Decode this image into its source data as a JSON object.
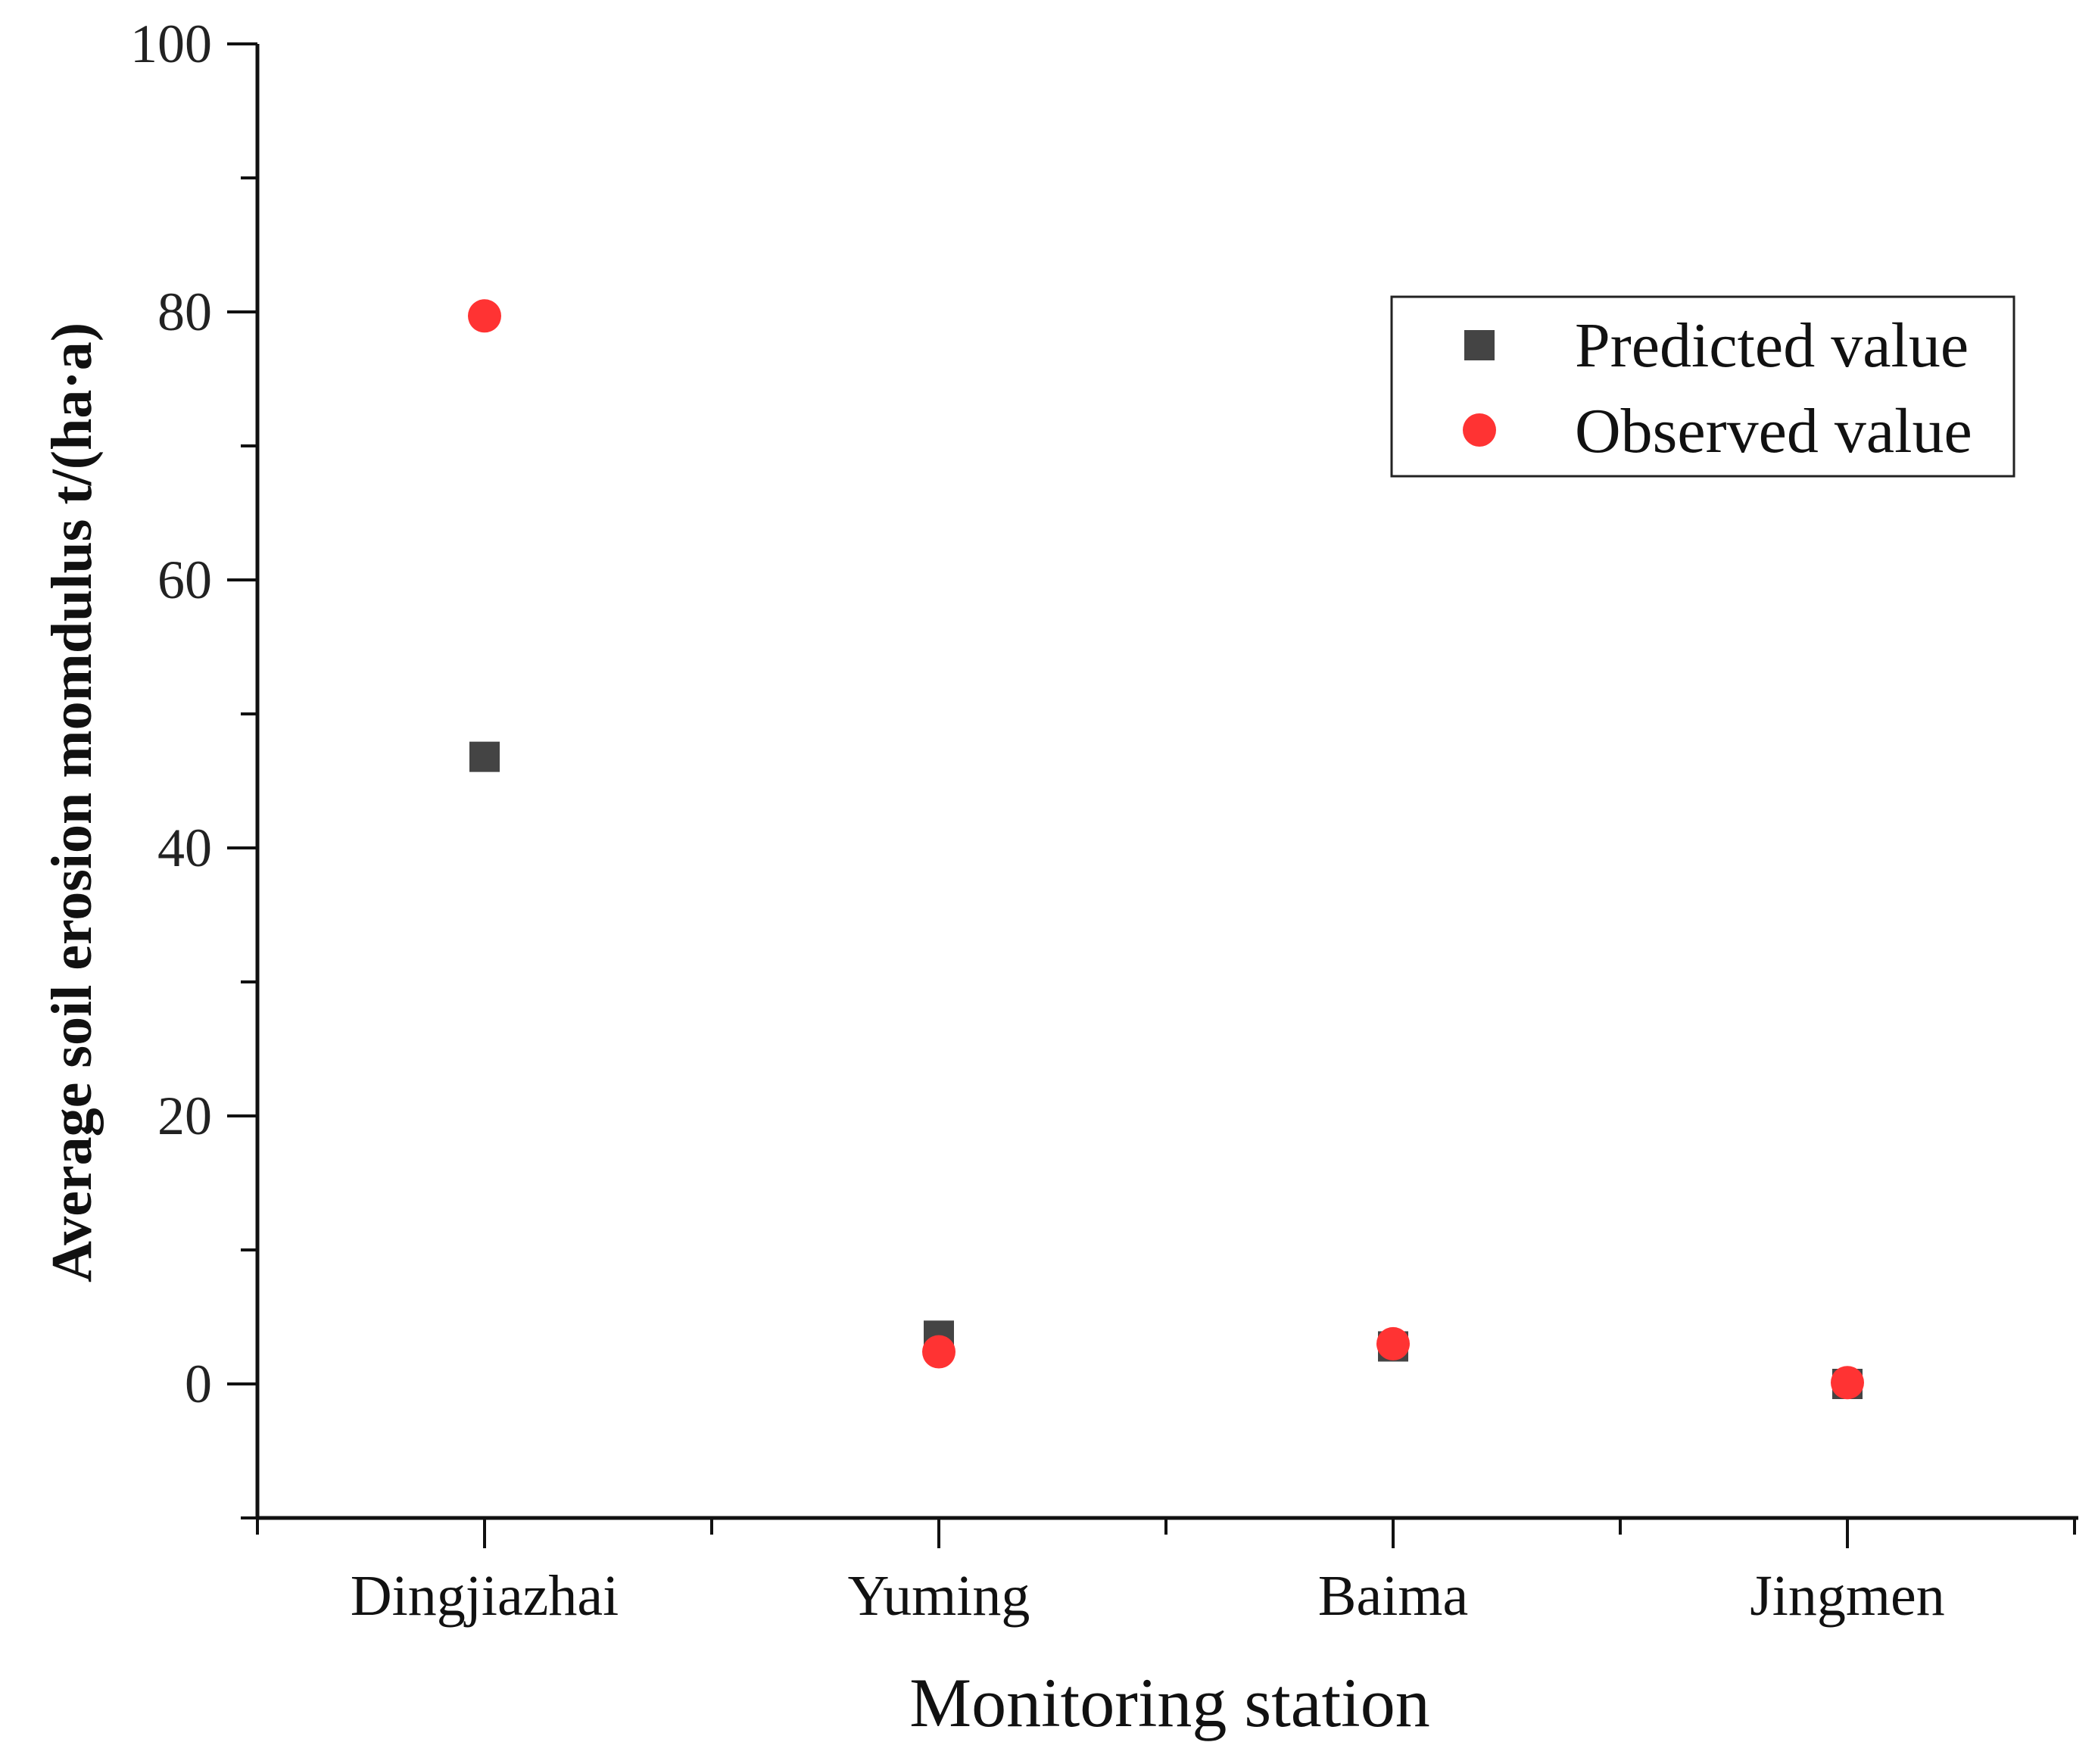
{
  "chart_data": {
    "type": "scatter",
    "title": "",
    "xlabel": "Monitoring station",
    "ylabel": "Average soil erosion momdulus t/(ha·a)",
    "categories": [
      "Dingjiazhai",
      "Yuming",
      "Baima",
      "Jingmen"
    ],
    "ylim": [
      -10,
      100
    ],
    "yticks": [
      "0",
      "20",
      "40",
      "60",
      "80",
      "100"
    ],
    "series": [
      {
        "name": "Predicted value",
        "marker": "square",
        "color": "#444444",
        "values": [
          46.8,
          3.6,
          2.8,
          0.0
        ]
      },
      {
        "name": "Observed value",
        "marker": "circle",
        "color": "#ff3333",
        "values": [
          79.7,
          2.4,
          3.0,
          0.1
        ]
      }
    ],
    "legend_position": "top-right",
    "grid": false
  }
}
